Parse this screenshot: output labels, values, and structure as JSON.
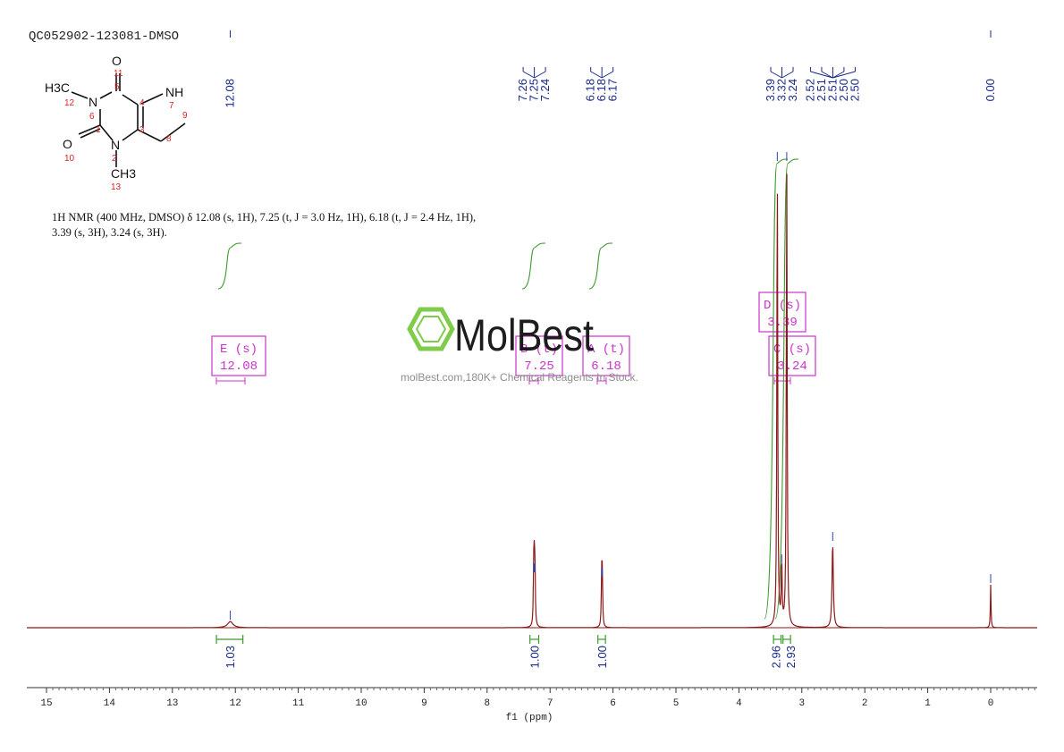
{
  "chart_data": {
    "type": "line",
    "title": "QC052902-123081-DMSO",
    "xlabel": "f1 (ppm)",
    "xlim": [
      15.8,
      -0.7
    ],
    "x_reversed": true,
    "ticks": [
      "15",
      "14",
      "13",
      "12",
      "11",
      "10",
      "9",
      "8",
      "7",
      "6",
      "5",
      "4",
      "3",
      "2",
      "1",
      "0"
    ],
    "peak_labels": [
      {
        "text": "12.08",
        "ppm": 12.08
      },
      {
        "text": "7.26",
        "ppm": 7.26
      },
      {
        "text": "7.25",
        "ppm": 7.25
      },
      {
        "text": "7.24",
        "ppm": 7.24
      },
      {
        "text": "6.18",
        "ppm": 6.18
      },
      {
        "text": "6.18",
        "ppm": 6.18
      },
      {
        "text": "6.17",
        "ppm": 6.17
      },
      {
        "text": "3.39",
        "ppm": 3.39
      },
      {
        "text": "3.32",
        "ppm": 3.32
      },
      {
        "text": "3.24",
        "ppm": 3.24
      },
      {
        "text": "2.52",
        "ppm": 2.52
      },
      {
        "text": "2.51",
        "ppm": 2.51
      },
      {
        "text": "2.51",
        "ppm": 2.51
      },
      {
        "text": "2.50",
        "ppm": 2.5
      },
      {
        "text": "2.50",
        "ppm": 2.5
      },
      {
        "text": "0.00",
        "ppm": 0.0
      }
    ],
    "peaks": [
      {
        "ppm": 12.08,
        "height": 0.07,
        "width": 0.05
      },
      {
        "ppm": 7.26,
        "height": 0.6,
        "width": 0.007
      },
      {
        "ppm": 7.25,
        "height": 0.6,
        "width": 0.007
      },
      {
        "ppm": 7.24,
        "height": 0.6,
        "width": 0.007
      },
      {
        "ppm": 6.18,
        "height": 0.55,
        "width": 0.007
      },
      {
        "ppm": 6.17,
        "height": 0.55,
        "width": 0.007
      },
      {
        "ppm": 3.39,
        "height": 5.2,
        "width": 0.008
      },
      {
        "ppm": 3.32,
        "height": 0.7,
        "width": 0.008
      },
      {
        "ppm": 3.24,
        "height": 5.2,
        "width": 0.008
      },
      {
        "ppm": 2.51,
        "height": 0.95,
        "width": 0.012
      },
      {
        "ppm": 0.0,
        "height": 0.48,
        "width": 0.006
      }
    ],
    "integrals": [
      {
        "label": "1.03",
        "from": 12.3,
        "to": 11.88
      },
      {
        "label": "1.00",
        "from": 7.32,
        "to": 7.18
      },
      {
        "label": "1.00",
        "from": 6.24,
        "to": 6.12
      },
      {
        "label": "2.96",
        "from": 3.45,
        "to": 3.33
      },
      {
        "label": "2.93",
        "from": 3.3,
        "to": 3.18
      }
    ],
    "multiplets": [
      {
        "letter": "E",
        "mult": "(s)",
        "shift": "12.08"
      },
      {
        "letter": "B",
        "mult": "(t)",
        "shift": "7.25"
      },
      {
        "letter": "A",
        "mult": "(t)",
        "shift": "6.18"
      },
      {
        "letter": "D",
        "mult": "(s)",
        "shift": "3.39"
      },
      {
        "letter": "C",
        "mult": "(s)",
        "shift": "3.24"
      }
    ],
    "colors": {
      "spectrum": "#8b1a1a",
      "integral": "#3a9b2a",
      "label": "#1a2a8a",
      "multiplet": "#cc33cc"
    }
  },
  "description": {
    "line1": "1H NMR (400 MHz, DMSO) δ 12.08 (s, 1H), 7.25 (t, J = 3.0 Hz, 1H), 6.18 (t, J = 2.4 Hz, 1H),",
    "line2": "3.39 (s, 3H), 3.24 (s, 3H)."
  },
  "structure": {
    "atoms": [
      "O",
      "11",
      "5",
      "H3C",
      "12",
      "N",
      "6",
      "4",
      "NH",
      "7",
      "9",
      "O",
      "1",
      "3",
      "8",
      "10",
      "N",
      "2",
      "CH3",
      "13"
    ]
  },
  "watermark": {
    "brand": "MolBest",
    "tagline": "molBest.com,180K+ Chemical Reagents In Stock."
  }
}
